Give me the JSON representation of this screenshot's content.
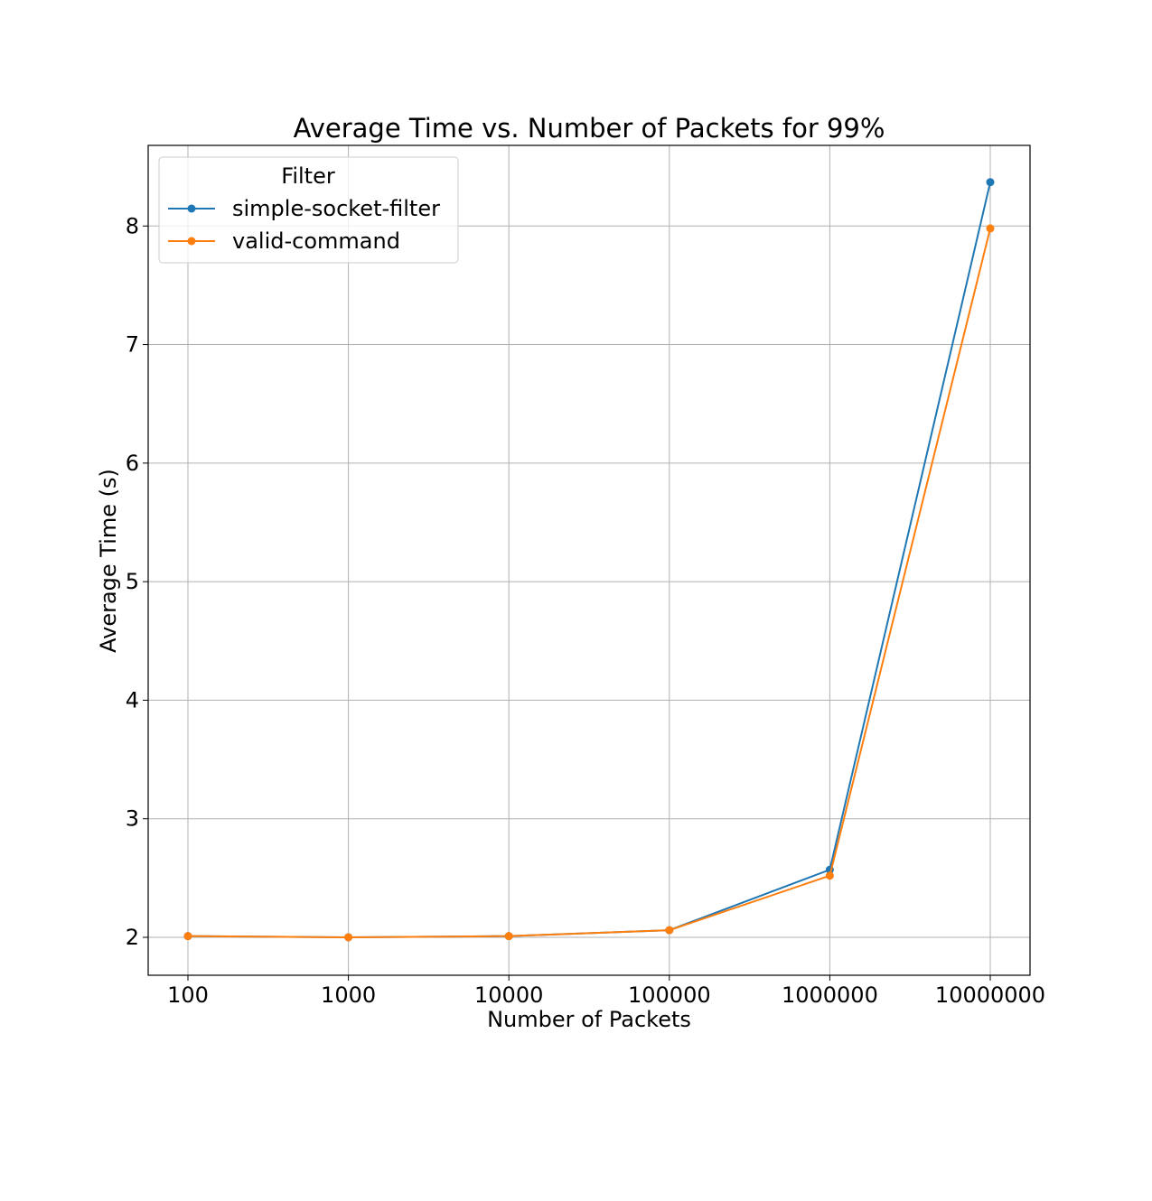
{
  "chart_data": {
    "type": "line",
    "title": "Average Time vs. Number of Packets for 99%",
    "xlabel": "Number of Packets",
    "ylabel": "Average Time (s)",
    "categories": [
      "100",
      "1000",
      "10000",
      "100000",
      "1000000",
      "10000000"
    ],
    "yticks": [
      "2",
      "3",
      "4",
      "5",
      "6",
      "7",
      "8"
    ],
    "ylim": [
      1.68,
      8.68
    ],
    "grid": true,
    "legend": {
      "title": "Filter",
      "position": "top-left"
    },
    "series": [
      {
        "name": "simple-socket-filter",
        "color": "#1f77b4",
        "values": [
          2.01,
          2.0,
          2.01,
          2.06,
          2.57,
          8.37
        ]
      },
      {
        "name": "valid-command",
        "color": "#ff7f0e",
        "values": [
          2.01,
          2.0,
          2.01,
          2.06,
          2.52,
          7.98
        ]
      }
    ]
  }
}
